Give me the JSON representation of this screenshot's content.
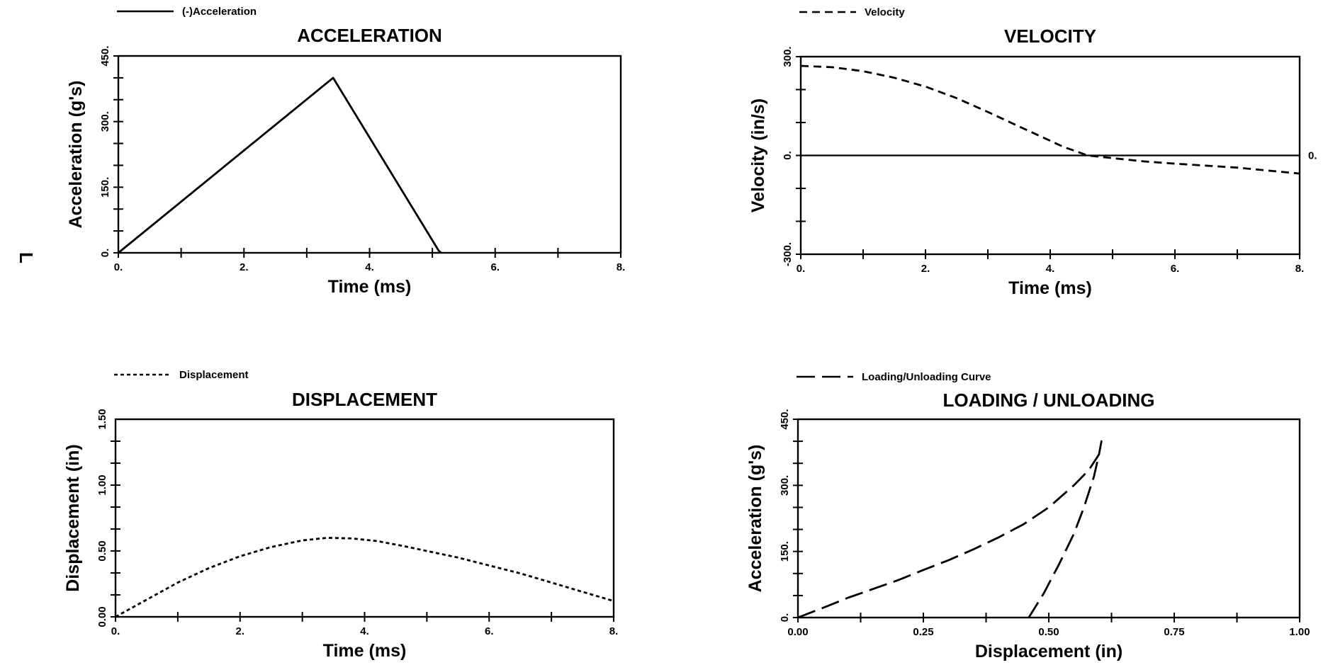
{
  "side_mark": "L",
  "chart_data": [
    {
      "id": "acceleration",
      "type": "line",
      "title": "ACCELERATION",
      "xlabel": "Time (ms)",
      "ylabel": "Acceleration (g's)",
      "xlim": [
        0,
        8
      ],
      "ylim": [
        0,
        450
      ],
      "x_ticks": [
        0,
        2,
        4,
        6,
        8
      ],
      "x_tick_labels": [
        "0.",
        "2.",
        "4.",
        "6.",
        "8."
      ],
      "y_ticks": [
        0,
        150,
        300,
        450
      ],
      "y_tick_labels": [
        "0.",
        "150.",
        "300.",
        "450."
      ],
      "x_minor_step": 1,
      "y_minor_step": 50,
      "legend": "top-left",
      "series": [
        {
          "name": "(-)Acceleration",
          "style": "solid",
          "x": [
            0,
            3.42,
            5.1,
            5.14
          ],
          "y": [
            0,
            400,
            5,
            0
          ]
        }
      ]
    },
    {
      "id": "velocity",
      "type": "line",
      "title": "VELOCITY",
      "xlabel": "Time (ms)",
      "ylabel": "Velocity (in/s)",
      "xlim": [
        0,
        8
      ],
      "ylim": [
        -300,
        300
      ],
      "x_ticks": [
        0,
        2,
        4,
        6,
        8
      ],
      "x_tick_labels": [
        "0.",
        "2.",
        "4.",
        "6.",
        "8."
      ],
      "y_ticks": [
        -300,
        0,
        300
      ],
      "y_tick_labels": [
        "-300.",
        "0.",
        "300."
      ],
      "x_minor_step": 1,
      "y_minor_step": 100,
      "right_label": "0.",
      "legend": "top-left",
      "reference_line": 0,
      "series": [
        {
          "name": "Velocity",
          "style": "dashed",
          "x": [
            0,
            0.5,
            1,
            1.5,
            2,
            2.5,
            3,
            3.42,
            3.8,
            4.2,
            4.6,
            5.1,
            5.5,
            6,
            7,
            8
          ],
          "y": [
            272,
            268,
            256,
            236,
            209,
            174,
            132,
            95,
            62,
            27,
            0,
            -10,
            -18,
            -25,
            -37,
            -55
          ]
        }
      ]
    },
    {
      "id": "displacement",
      "type": "line",
      "title": "DISPLACEMENT",
      "xlabel": "Time (ms)",
      "ylabel": "Displacement (in)",
      "xlim": [
        0,
        8
      ],
      "ylim": [
        0,
        1.5
      ],
      "x_ticks": [
        0,
        2,
        4,
        6,
        8
      ],
      "x_tick_labels": [
        "0.",
        "2.",
        "4.",
        "6.",
        "8."
      ],
      "y_ticks": [
        0,
        0.5,
        1.0,
        1.5
      ],
      "y_tick_labels": [
        "0.00",
        "0.50",
        "1.00",
        "1.50"
      ],
      "x_minor_step": 1,
      "y_minor_step": 0.1667,
      "legend": "top-left",
      "series": [
        {
          "name": "Displacement",
          "style": "dotted",
          "x": [
            0,
            0.5,
            1,
            1.5,
            2,
            2.5,
            3,
            3.4,
            3.8,
            4.2,
            4.6,
            5,
            5.5,
            6,
            6.5,
            7,
            7.5,
            8
          ],
          "y": [
            0.0,
            0.13,
            0.26,
            0.37,
            0.46,
            0.53,
            0.58,
            0.6,
            0.595,
            0.575,
            0.54,
            0.5,
            0.45,
            0.39,
            0.33,
            0.26,
            0.19,
            0.12
          ]
        }
      ]
    },
    {
      "id": "loading",
      "type": "line",
      "title": "LOADING / UNLOADING",
      "xlabel": "Displacement (in)",
      "ylabel": "Acceleration (g's)",
      "xlim": [
        0,
        1
      ],
      "ylim": [
        0,
        450
      ],
      "x_ticks": [
        0,
        0.25,
        0.5,
        0.75,
        1.0
      ],
      "x_tick_labels": [
        "0.00",
        "0.25",
        "0.50",
        "0.75",
        "1.00"
      ],
      "y_ticks": [
        0,
        150,
        300,
        450
      ],
      "y_tick_labels": [
        "0.",
        "150.",
        "300.",
        "450."
      ],
      "x_minor_step": 0.125,
      "y_minor_step": 50,
      "legend": "top-left",
      "series": [
        {
          "name": "Loading/Unloading Curve",
          "style": "longdash",
          "x": [
            0,
            0.05,
            0.1,
            0.15,
            0.2,
            0.25,
            0.3,
            0.35,
            0.4,
            0.45,
            0.5,
            0.55,
            0.58,
            0.6,
            0.605,
            0.6,
            0.59,
            0.57,
            0.55,
            0.52,
            0.49,
            0.46
          ],
          "y": [
            0,
            22,
            45,
            65,
            85,
            108,
            130,
            155,
            182,
            212,
            250,
            300,
            335,
            370,
            400,
            370,
            320,
            250,
            190,
            120,
            55,
            0
          ]
        }
      ]
    }
  ]
}
